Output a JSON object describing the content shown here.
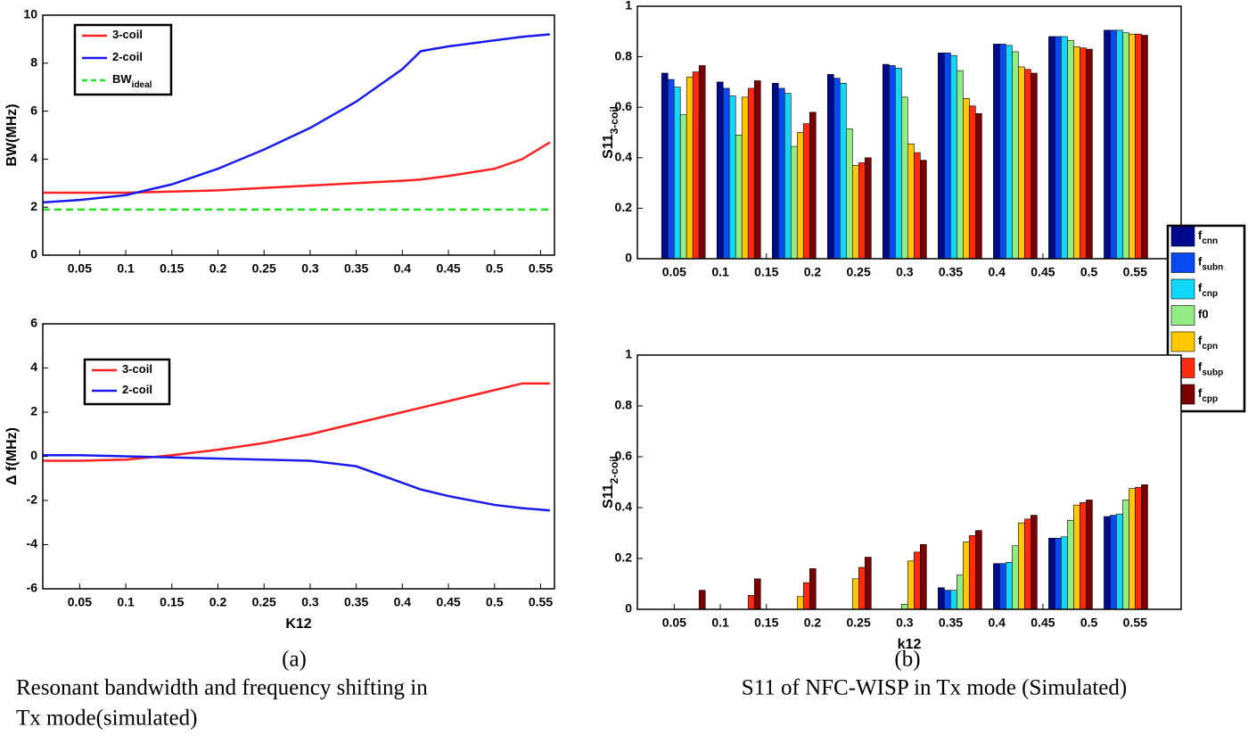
{
  "chart_data": [
    {
      "type": "line",
      "ylabel": "BW(MHz)",
      "xlim": [
        0.01,
        0.565
      ],
      "ylim": [
        0,
        10
      ],
      "xticks": [
        0.05,
        0.1,
        0.15,
        0.2,
        0.25,
        0.3,
        0.35,
        0.4,
        0.45,
        0.5,
        0.55
      ],
      "yticks": [
        0,
        2,
        4,
        6,
        8,
        10
      ],
      "legend": "upper left",
      "x": [
        0.01,
        0.05,
        0.1,
        0.15,
        0.2,
        0.25,
        0.3,
        0.35,
        0.4,
        0.42,
        0.45,
        0.5,
        0.53,
        0.56
      ],
      "series": [
        {
          "name": "3-coil",
          "color": "#ff2020",
          "values": [
            2.6,
            2.6,
            2.6,
            2.65,
            2.7,
            2.8,
            2.9,
            3.0,
            3.1,
            3.15,
            3.3,
            3.6,
            4.0,
            4.7
          ]
        },
        {
          "name": "2-coil",
          "color": "#1a1aee",
          "values": [
            2.2,
            2.3,
            2.5,
            2.95,
            3.6,
            4.4,
            5.3,
            6.4,
            7.75,
            8.5,
            8.7,
            8.95,
            9.1,
            9.2
          ]
        },
        {
          "name": "BW",
          "name_sub": "ideal",
          "color": "#22e022",
          "dashed": true,
          "values": [
            1.9,
            1.9,
            1.9,
            1.9,
            1.9,
            1.9,
            1.9,
            1.9,
            1.9,
            1.9,
            1.9,
            1.9,
            1.9,
            1.9
          ]
        }
      ]
    },
    {
      "type": "line",
      "ylabel": "Δ f(MHz)",
      "xlabel": "K12",
      "xlim": [
        0.01,
        0.565
      ],
      "ylim": [
        -6,
        6
      ],
      "xticks": [
        0.05,
        0.1,
        0.15,
        0.2,
        0.25,
        0.3,
        0.35,
        0.4,
        0.45,
        0.5,
        0.55
      ],
      "yticks": [
        -6,
        -4,
        -2,
        0,
        2,
        4,
        6
      ],
      "legend": "upper left",
      "x": [
        0.01,
        0.05,
        0.1,
        0.15,
        0.2,
        0.25,
        0.3,
        0.35,
        0.4,
        0.42,
        0.45,
        0.5,
        0.53,
        0.56
      ],
      "series": [
        {
          "name": "3-coil",
          "color": "#ff2020",
          "values": [
            -0.2,
            -0.2,
            -0.15,
            0.05,
            0.3,
            0.6,
            1.0,
            1.5,
            2.0,
            2.2,
            2.5,
            3.0,
            3.3,
            3.3
          ]
        },
        {
          "name": "2-coil",
          "color": "#1a1aee",
          "values": [
            0.05,
            0.05,
            0.0,
            -0.05,
            -0.1,
            -0.15,
            -0.2,
            -0.45,
            -1.2,
            -1.5,
            -1.8,
            -2.2,
            -2.35,
            -2.45
          ]
        }
      ]
    },
    {
      "type": "bar",
      "ylabel": "S11",
      "ylabel_sub": "3-coil",
      "xlim": [
        0.01,
        0.6
      ],
      "ylim": [
        0,
        1
      ],
      "xticks": [
        0.05,
        0.1,
        0.15,
        0.2,
        0.25,
        0.3,
        0.35,
        0.4,
        0.45,
        0.5,
        0.55
      ],
      "yticks": [
        0,
        0.2,
        0.4,
        0.6,
        0.8,
        1
      ],
      "legend": "outside right",
      "x": [
        0.06,
        0.12,
        0.18,
        0.24,
        0.3,
        0.36,
        0.42,
        0.48,
        0.54
      ],
      "series": [
        {
          "name": "f",
          "name_sub": "cnn",
          "color": "#000a8c",
          "values": [
            0.735,
            0.7,
            0.695,
            0.73,
            0.77,
            0.815,
            0.85,
            0.88,
            0.905
          ]
        },
        {
          "name": "f",
          "name_sub": "subn",
          "color": "#0a48f0",
          "values": [
            0.71,
            0.675,
            0.675,
            0.715,
            0.765,
            0.815,
            0.85,
            0.88,
            0.905
          ]
        },
        {
          "name": "f",
          "name_sub": "cnp",
          "color": "#10d8f8",
          "values": [
            0.68,
            0.645,
            0.655,
            0.695,
            0.755,
            0.805,
            0.845,
            0.88,
            0.905
          ]
        },
        {
          "name": "f0",
          "color": "#94ec84",
          "values": [
            0.57,
            0.49,
            0.445,
            0.515,
            0.64,
            0.745,
            0.82,
            0.865,
            0.895
          ]
        },
        {
          "name": "f",
          "name_sub": "cpn",
          "color": "#ffc800",
          "values": [
            0.72,
            0.64,
            0.5,
            0.37,
            0.455,
            0.635,
            0.76,
            0.84,
            0.89
          ]
        },
        {
          "name": "f",
          "name_sub": "subp",
          "color": "#ff2a10",
          "values": [
            0.74,
            0.675,
            0.535,
            0.38,
            0.42,
            0.605,
            0.75,
            0.835,
            0.89
          ]
        },
        {
          "name": "f",
          "name_sub": "cpp",
          "color": "#7c0000",
          "values": [
            0.765,
            0.705,
            0.58,
            0.4,
            0.39,
            0.575,
            0.735,
            0.83,
            0.885
          ]
        }
      ]
    },
    {
      "type": "bar",
      "ylabel": "S11",
      "ylabel_sub": "2-coil",
      "xlabel": "k12",
      "xlim": [
        0.01,
        0.6
      ],
      "ylim": [
        0,
        1
      ],
      "xticks": [
        0.05,
        0.1,
        0.15,
        0.2,
        0.25,
        0.3,
        0.35,
        0.4,
        0.45,
        0.5,
        0.55
      ],
      "yticks": [
        0,
        0.2,
        0.4,
        0.6,
        0.8,
        1
      ],
      "x": [
        0.06,
        0.12,
        0.18,
        0.24,
        0.3,
        0.36,
        0.42,
        0.48,
        0.54
      ],
      "series": [
        {
          "color": "#000a8c",
          "values": [
            0,
            0,
            0,
            0,
            0,
            0.085,
            0.18,
            0.28,
            0.365
          ]
        },
        {
          "color": "#0a48f0",
          "values": [
            0,
            0,
            0,
            0,
            0,
            0.075,
            0.18,
            0.28,
            0.37
          ]
        },
        {
          "color": "#10d8f8",
          "values": [
            0,
            0,
            0,
            0,
            0,
            0.075,
            0.185,
            0.285,
            0.375
          ]
        },
        {
          "color": "#94ec84",
          "values": [
            0,
            0,
            0,
            0,
            0.02,
            0.135,
            0.25,
            0.35,
            0.43
          ]
        },
        {
          "color": "#ffc800",
          "values": [
            0,
            0,
            0.05,
            0.12,
            0.19,
            0.265,
            0.34,
            0.41,
            0.475
          ]
        },
        {
          "color": "#ff2a10",
          "values": [
            0,
            0.055,
            0.105,
            0.165,
            0.225,
            0.29,
            0.355,
            0.42,
            0.48
          ]
        },
        {
          "color": "#7c0000",
          "values": [
            0.075,
            0.12,
            0.16,
            0.205,
            0.255,
            0.31,
            0.37,
            0.43,
            0.49
          ]
        }
      ]
    }
  ],
  "captions": [
    {
      "label": "(a)",
      "lines": [
        "Resonant bandwidth and frequency shifting in",
        "Tx mode(simulated)"
      ]
    },
    {
      "label": "(b)",
      "lines": [
        "S11 of NFC-WISP in Tx mode (Simulated)"
      ]
    }
  ]
}
